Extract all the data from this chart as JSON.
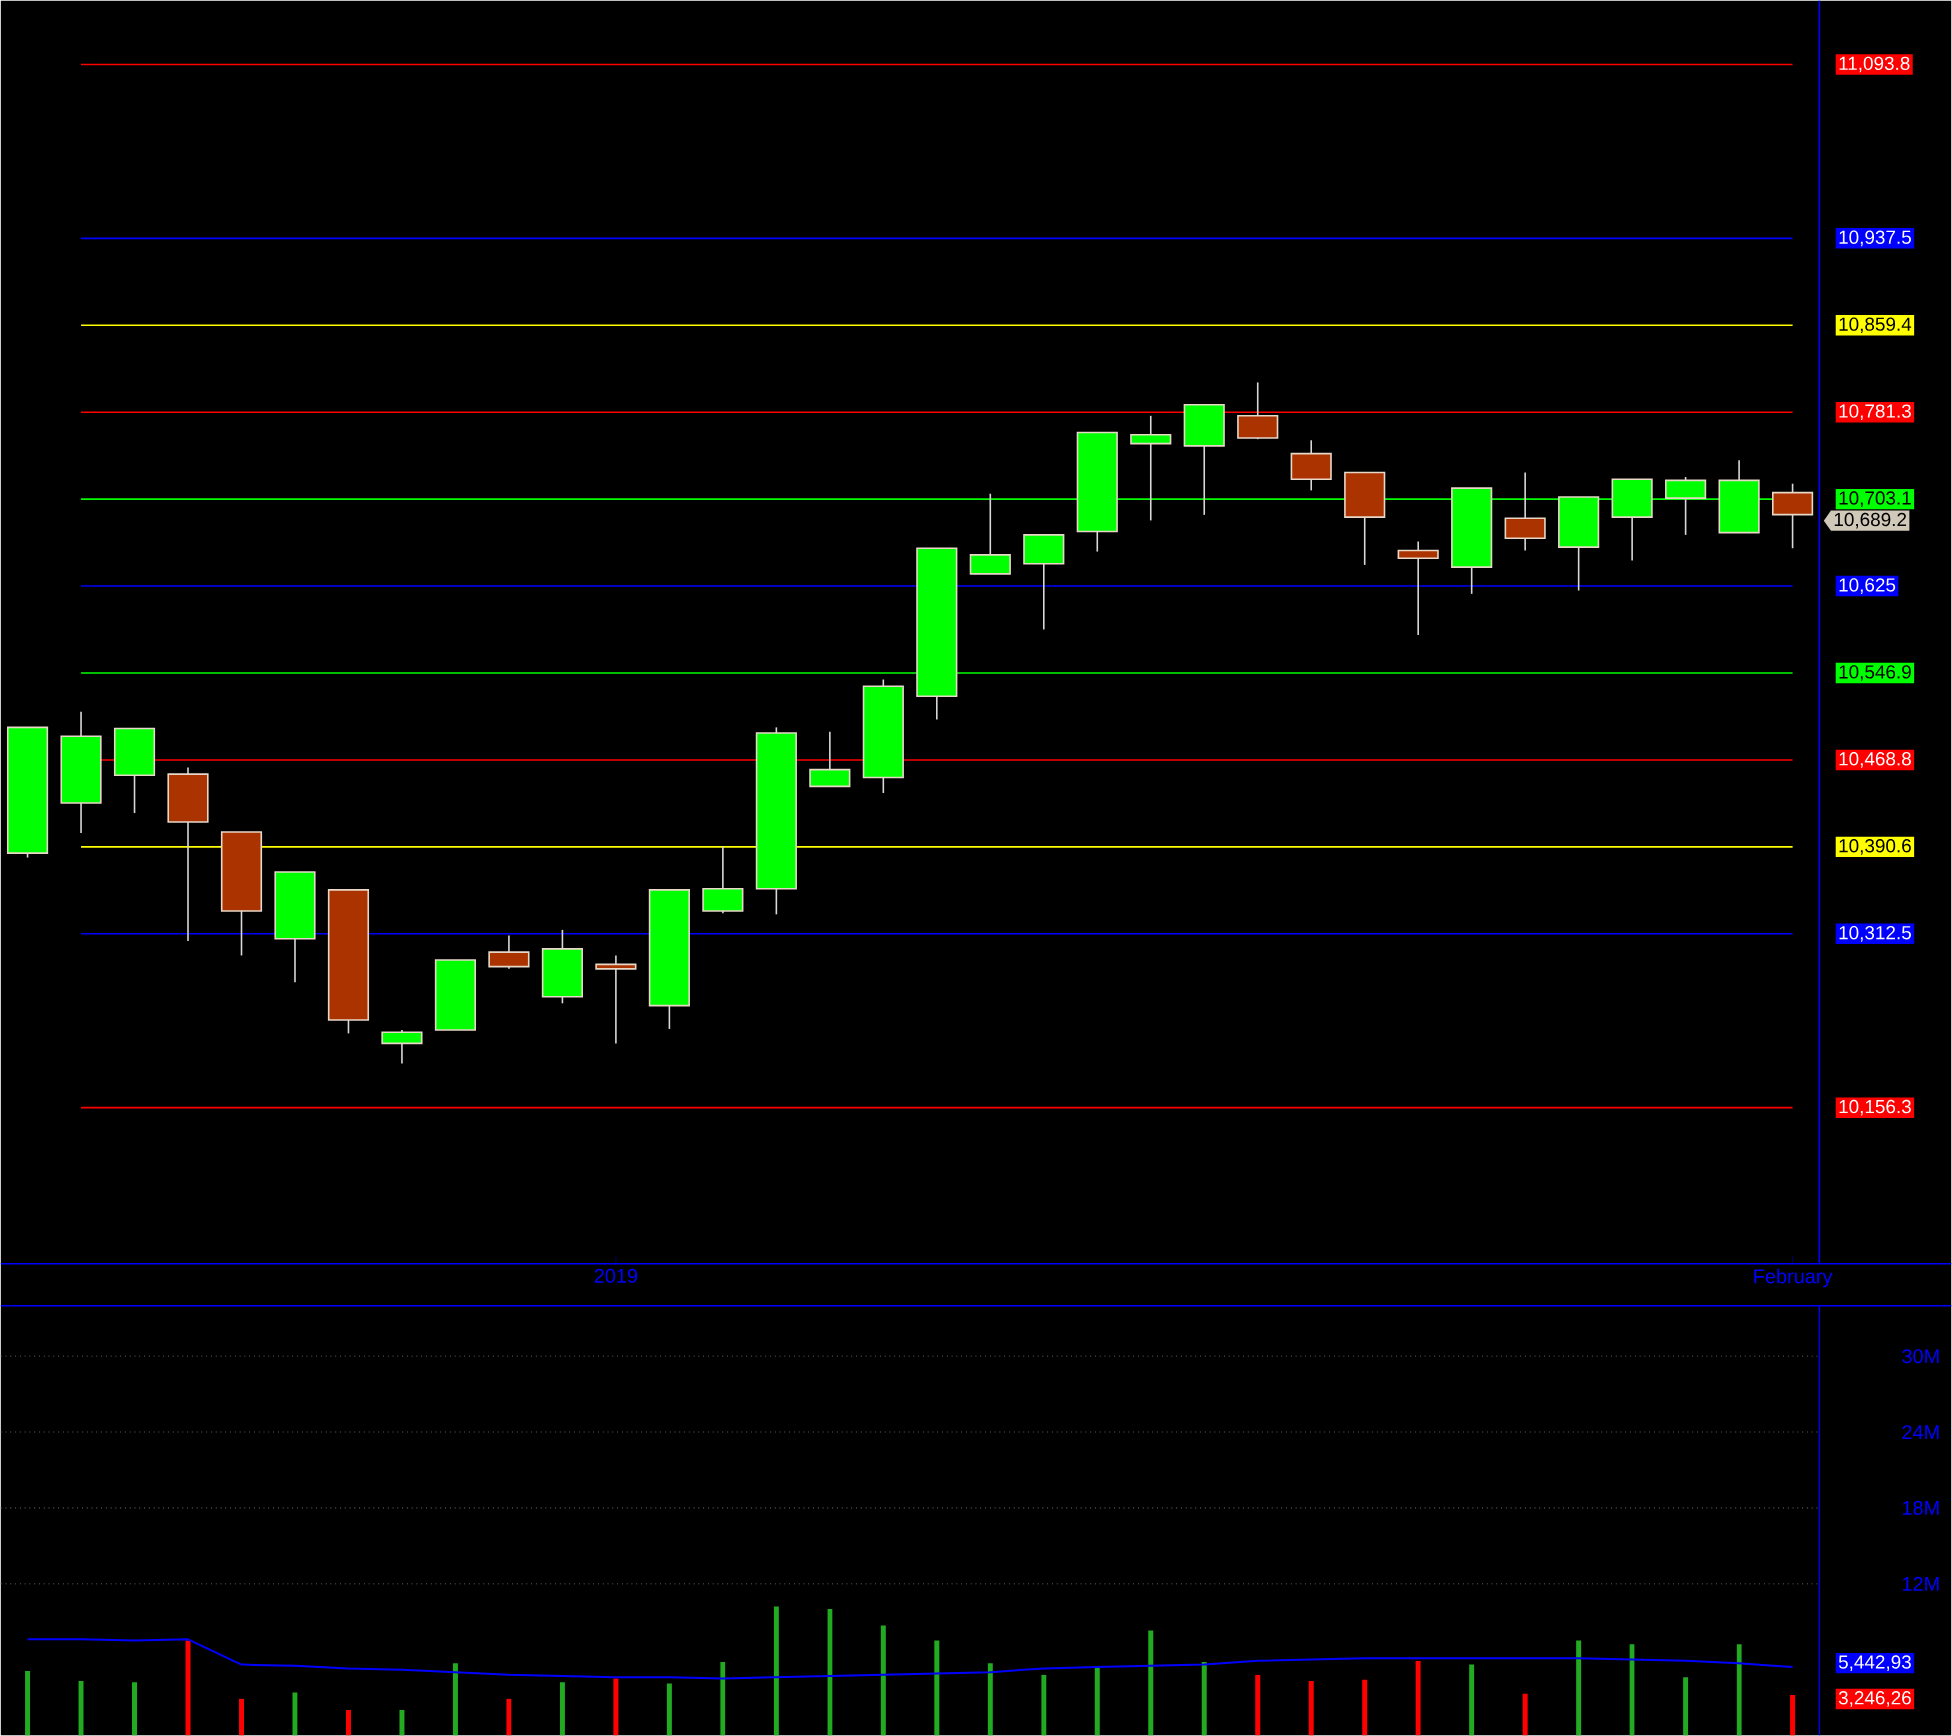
{
  "chart_data": [
    {
      "type": "candlestick",
      "categories": [
        null,
        null,
        null,
        null,
        null,
        null,
        null,
        null,
        null,
        null,
        null,
        "2019",
        null,
        null,
        null,
        null,
        null,
        null,
        null,
        null,
        null,
        null,
        null,
        null,
        null,
        null,
        null,
        null,
        null,
        null,
        null,
        null,
        null,
        "February"
      ],
      "ohlc": [
        [
          10385,
          10498,
          10381,
          10498
        ],
        [
          10430,
          10512,
          10403,
          10490
        ],
        [
          10455,
          10497,
          10421,
          10497
        ],
        [
          10456,
          10462,
          10306,
          10413
        ],
        [
          10404,
          10404,
          10293,
          10333
        ],
        [
          10308,
          10368,
          10269,
          10368
        ],
        [
          10352,
          10352,
          10223,
          10235
        ],
        [
          10214,
          10226,
          10196,
          10224
        ],
        [
          10226,
          10289,
          10226,
          10289
        ],
        [
          10296,
          10311,
          10281,
          10283
        ],
        [
          10256,
          10316,
          10250,
          10299
        ],
        [
          10285,
          10293,
          10214,
          10281
        ],
        [
          10248,
          10352,
          10227,
          10352
        ],
        [
          10333,
          10391,
          10331,
          10353
        ],
        [
          10353,
          10498,
          10330,
          10493
        ],
        [
          10445,
          10494,
          10445,
          10460
        ],
        [
          10453,
          10541,
          10439,
          10535
        ],
        [
          10526,
          10659,
          10505,
          10659
        ],
        [
          10636,
          10708,
          10636,
          10653
        ],
        [
          10645,
          10671,
          10586,
          10671
        ],
        [
          10674,
          10763,
          10656,
          10763
        ],
        [
          10753,
          10778,
          10684,
          10761
        ],
        [
          10751,
          10788,
          10689,
          10788
        ],
        [
          10778,
          10808,
          10757,
          10758
        ],
        [
          10744,
          10756,
          10711,
          10721
        ],
        [
          10727,
          10727,
          10644,
          10687
        ],
        [
          10657,
          10665,
          10581,
          10650
        ],
        [
          10642,
          10713,
          10618,
          10713
        ],
        [
          10686,
          10727,
          10657,
          10668
        ],
        [
          10660,
          10705,
          10621,
          10705
        ],
        [
          10687,
          10721,
          10648,
          10721
        ],
        [
          10704,
          10723,
          10671,
          10720
        ],
        [
          10673,
          10738,
          10673,
          10720
        ],
        [
          10709,
          10717,
          10659,
          10689.2
        ]
      ],
      "colors": [
        "#00ff00",
        "#00ff00",
        "#00ff00",
        "#aa3300",
        "#aa3300",
        "#00ff00",
        "#aa3300",
        "#00ff00",
        "#00ff00",
        "#aa3300",
        "#00ff00",
        "#aa3300",
        "#00ff00",
        "#00ff00",
        "#00ff00",
        "#00ff00",
        "#00ff00",
        "#00ff00",
        "#00ff00",
        "#00ff00",
        "#00ff00",
        "#00ff00",
        "#00ff00",
        "#aa3300",
        "#aa3300",
        "#aa3300",
        "#aa3300",
        "#00ff00",
        "#aa3300",
        "#00ff00",
        "#00ff00",
        "#00ff00",
        "#00ff00",
        "#aa3300"
      ],
      "ylim": [
        10016,
        11151
      ],
      "yticks": [
        {
          "value": 11093.75,
          "label": "11,093.8"
        },
        {
          "value": 10937.5,
          "label": "10,937.5"
        },
        {
          "value": 10859.375,
          "label": "10,859.4"
        },
        {
          "value": 10781.25,
          "label": "10,781.3"
        },
        {
          "value": 10703.125,
          "label": "10,703.1"
        },
        {
          "value": 10625,
          "label": "10,625"
        },
        {
          "value": 10546.875,
          "label": "10,546.9"
        },
        {
          "value": 10468.75,
          "label": "10,468.8"
        },
        {
          "value": 10390.625,
          "label": "10,390.6"
        },
        {
          "value": 10312.5,
          "label": "10,312.5"
        },
        {
          "value": 10156.25,
          "label": "10,156.3"
        }
      ],
      "ref_lines": [
        {
          "axis": "y",
          "value": 11093.75,
          "color": "#ff0000"
        },
        {
          "axis": "y",
          "value": 10937.5,
          "color": "#0000ff"
        },
        {
          "axis": "y",
          "value": 10859.375,
          "color": "#ffff00"
        },
        {
          "axis": "y",
          "value": 10781.25,
          "color": "#ff0000"
        },
        {
          "axis": "y",
          "value": 10703.125,
          "color": "#00ff00"
        },
        {
          "axis": "y",
          "value": 10625,
          "color": "#0000ff"
        },
        {
          "axis": "y",
          "value": 10546.875,
          "color": "#00ff00"
        },
        {
          "axis": "y",
          "value": 10468.75,
          "color": "#ff0000"
        },
        {
          "axis": "y",
          "value": 10390.625,
          "color": "#ffff00"
        },
        {
          "axis": "y",
          "value": 10312.5,
          "color": "#0000ff"
        },
        {
          "axis": "y",
          "value": 10156.25,
          "color": "#ff0000"
        }
      ],
      "annotations": [
        "10,689.2"
      ]
    },
    {
      "type": "bar",
      "categories": [
        null,
        null,
        null,
        null,
        null,
        null,
        null,
        null,
        null,
        null,
        null,
        null,
        null,
        null,
        null,
        null,
        null,
        null,
        null,
        null,
        null,
        null,
        null,
        null,
        null,
        null,
        null,
        null,
        null,
        null,
        null,
        null,
        null,
        null
      ],
      "series": [
        {
          "type": "bar",
          "values": [
            5.1,
            4.3,
            4.2,
            7.5,
            2.9,
            3.4,
            2.0,
            2.0,
            5.7,
            2.9,
            4.2,
            4.5,
            4.1,
            5.8,
            10.2,
            10.0,
            8.7,
            7.5,
            5.7,
            4.8,
            5.4,
            8.3,
            5.8,
            4.8,
            4.3,
            4.4,
            5.9,
            5.6,
            3.3,
            7.5,
            7.2,
            4.6,
            7.2,
            3.2
          ],
          "colors": [
            "#22aa22",
            "#22aa22",
            "#22aa22",
            "#ff0000",
            "#ff0000",
            "#22aa22",
            "#ff0000",
            "#22aa22",
            "#22aa22",
            "#ff0000",
            "#22aa22",
            "#ff0000",
            "#22aa22",
            "#22aa22",
            "#22aa22",
            "#22aa22",
            "#22aa22",
            "#22aa22",
            "#22aa22",
            "#22aa22",
            "#22aa22",
            "#22aa22",
            "#22aa22",
            "#ff0000",
            "#ff0000",
            "#ff0000",
            "#ff0000",
            "#22aa22",
            "#ff0000",
            "#22aa22",
            "#22aa22",
            "#22aa22",
            "#22aa22",
            "#ff0000"
          ]
        },
        {
          "type": "line",
          "color": "#0000ff",
          "values": [
            7.6,
            7.6,
            7.5,
            7.6,
            5.6,
            5.5,
            5.3,
            5.2,
            5.0,
            4.8,
            4.7,
            4.6,
            4.6,
            4.5,
            4.6,
            4.7,
            4.8,
            4.9,
            5.0,
            5.3,
            5.4,
            5.5,
            5.6,
            5.9,
            6.0,
            6.1,
            6.1,
            6.1,
            6.1,
            6.1,
            6.0,
            5.9,
            5.7,
            5.4
          ]
        }
      ],
      "ylim": [
        0,
        34
      ],
      "yticks": [
        {
          "value": 12,
          "label": "12M"
        },
        {
          "value": 18,
          "label": "18M"
        },
        {
          "value": 24,
          "label": "24M"
        },
        {
          "value": 30,
          "label": "30M"
        }
      ],
      "grid": "y",
      "tick_labels": "y",
      "annotations": [
        "5,442,93",
        "3,246,26"
      ]
    }
  ]
}
